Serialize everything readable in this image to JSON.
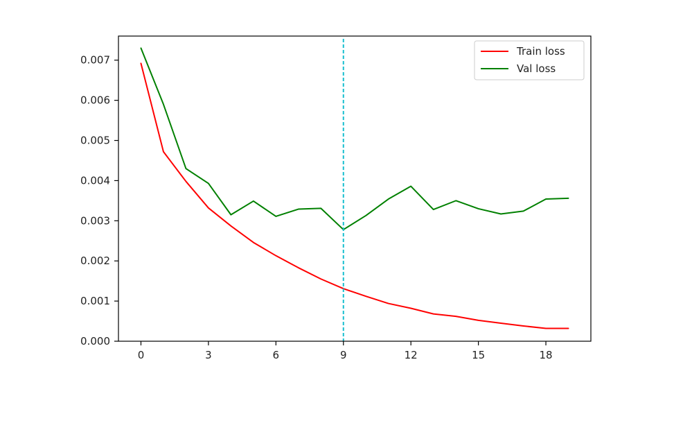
{
  "chart_data": {
    "type": "line",
    "title": "",
    "xlabel": "",
    "ylabel": "",
    "xlim": [
      -1,
      20
    ],
    "ylim": [
      0,
      0.0076
    ],
    "xticks": [
      0,
      3,
      6,
      9,
      12,
      15,
      18
    ],
    "xtick_labels": [
      "0",
      "3",
      "6",
      "9",
      "12",
      "15",
      "18"
    ],
    "yticks": [
      0,
      0.001,
      0.002,
      0.003,
      0.004,
      0.005,
      0.006,
      0.007
    ],
    "ytick_labels": [
      "0.000",
      "0.001",
      "0.002",
      "0.003",
      "0.004",
      "0.005",
      "0.006",
      "0.007"
    ],
    "x": [
      0,
      1,
      2,
      3,
      4,
      5,
      6,
      7,
      8,
      9,
      10,
      11,
      12,
      13,
      14,
      15,
      16,
      17,
      18,
      19
    ],
    "series": [
      {
        "name": "Train loss",
        "color": "#ff0000",
        "values": [
          0.00692,
          0.00472,
          0.00398,
          0.00332,
          0.00287,
          0.00246,
          0.00213,
          0.00183,
          0.00155,
          0.00131,
          0.00112,
          0.00094,
          0.00082,
          0.00068,
          0.00062,
          0.00052,
          0.00045,
          0.00038,
          0.00032,
          0.00032
        ]
      },
      {
        "name": "Val loss",
        "color": "#008000",
        "values": [
          0.0073,
          0.0059,
          0.0043,
          0.00393,
          0.00315,
          0.00349,
          0.00311,
          0.00329,
          0.00331,
          0.00278,
          0.00313,
          0.00354,
          0.00386,
          0.00328,
          0.0035,
          0.0033,
          0.00317,
          0.00324,
          0.00354,
          0.00356
        ]
      }
    ],
    "vline": {
      "x": 9,
      "color": "#17becf",
      "style": "dashed"
    },
    "legend": {
      "placement": "top-right"
    },
    "grid": false
  }
}
